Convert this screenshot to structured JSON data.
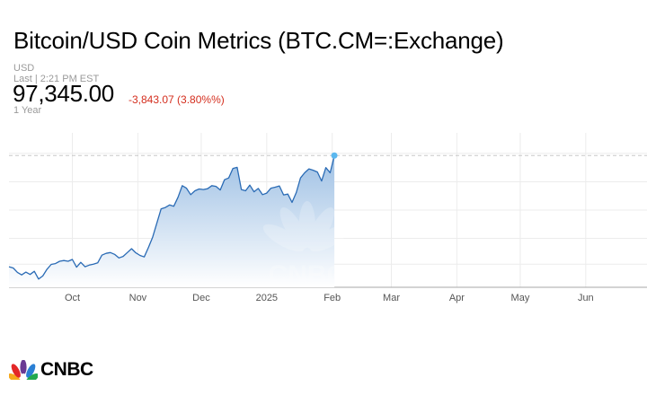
{
  "header": {
    "title": "Bitcoin/USD Coin Metrics (BTC.CM=:Exchange)",
    "currency": "USD",
    "last_update": "Last | 2:21 PM EST",
    "price": "97,345.00",
    "change": "-3,843.07 (3.80%%)",
    "range": "1 Year"
  },
  "brand": {
    "logo_text": "CNBC",
    "watermark": "CNBC"
  },
  "colors": {
    "line": "#2a6bb5",
    "area_top": "#9ec0e4",
    "change_negative": "#d42e1e",
    "marker": "#5bb8ef"
  },
  "chart_data": {
    "type": "area",
    "title": "",
    "xlabel": "",
    "ylabel": "",
    "x_ticks": [
      "Oct",
      "Nov",
      "Dec",
      "2025",
      "Feb",
      "Mar",
      "Apr",
      "May",
      "Jun"
    ],
    "x_tick_dates": [
      "2024-10-01",
      "2024-11-01",
      "2024-12-01",
      "2025-01-01",
      "2025-02-01",
      "2025-03-01",
      "2025-04-01",
      "2025-05-01",
      "2025-06-01"
    ],
    "x_range": [
      "2024-09-01",
      "2025-06-30"
    ],
    "y_range": [
      50000,
      110000
    ],
    "y_gridlines": [
      59000,
      69000,
      80000,
      91000,
      102000
    ],
    "previous_close": 101188,
    "show_y_ticks": false,
    "grid": true,
    "series": [
      {
        "values": [
          [
            "2024-09-01",
            58000
          ],
          [
            "2024-09-03",
            57500
          ],
          [
            "2024-09-05",
            55800
          ],
          [
            "2024-09-07",
            54800
          ],
          [
            "2024-09-09",
            55900
          ],
          [
            "2024-09-11",
            55000
          ],
          [
            "2024-09-13",
            56200
          ],
          [
            "2024-09-15",
            53200
          ],
          [
            "2024-09-17",
            54400
          ],
          [
            "2024-09-19",
            57000
          ],
          [
            "2024-09-21",
            58900
          ],
          [
            "2024-09-23",
            59200
          ],
          [
            "2024-09-25",
            60100
          ],
          [
            "2024-09-27",
            60400
          ],
          [
            "2024-09-29",
            60100
          ],
          [
            "2024-10-01",
            60800
          ],
          [
            "2024-10-03",
            57800
          ],
          [
            "2024-10-05",
            59700
          ],
          [
            "2024-10-07",
            58000
          ],
          [
            "2024-10-09",
            58600
          ],
          [
            "2024-10-11",
            59000
          ],
          [
            "2024-10-13",
            59500
          ],
          [
            "2024-10-15",
            62500
          ],
          [
            "2024-10-17",
            63200
          ],
          [
            "2024-10-19",
            63500
          ],
          [
            "2024-10-21",
            62800
          ],
          [
            "2024-10-23",
            61400
          ],
          [
            "2024-10-25",
            62000
          ],
          [
            "2024-10-27",
            63500
          ],
          [
            "2024-10-29",
            65000
          ],
          [
            "2024-10-31",
            63400
          ],
          [
            "2024-11-02",
            62400
          ],
          [
            "2024-11-04",
            61800
          ],
          [
            "2024-11-06",
            65500
          ],
          [
            "2024-11-08",
            69500
          ],
          [
            "2024-11-10",
            75000
          ],
          [
            "2024-11-12",
            80500
          ],
          [
            "2024-11-14",
            81000
          ],
          [
            "2024-11-16",
            82000
          ],
          [
            "2024-11-18",
            81500
          ],
          [
            "2024-11-20",
            85000
          ],
          [
            "2024-11-22",
            89500
          ],
          [
            "2024-11-24",
            88500
          ],
          [
            "2024-11-26",
            86000
          ],
          [
            "2024-11-28",
            87500
          ],
          [
            "2024-11-30",
            88200
          ],
          [
            "2024-12-02",
            88000
          ],
          [
            "2024-12-04",
            88300
          ],
          [
            "2024-12-06",
            89500
          ],
          [
            "2024-12-08",
            89200
          ],
          [
            "2024-12-10",
            87800
          ],
          [
            "2024-12-12",
            91800
          ],
          [
            "2024-12-14",
            92500
          ],
          [
            "2024-12-16",
            96200
          ],
          [
            "2024-12-18",
            96600
          ],
          [
            "2024-12-20",
            88000
          ],
          [
            "2024-12-22",
            87500
          ],
          [
            "2024-12-24",
            89700
          ],
          [
            "2024-12-26",
            87100
          ],
          [
            "2024-12-28",
            88400
          ],
          [
            "2024-12-30",
            86000
          ],
          [
            "2025-01-01",
            86600
          ],
          [
            "2025-01-03",
            88500
          ],
          [
            "2025-01-05",
            88900
          ],
          [
            "2025-01-07",
            89400
          ],
          [
            "2025-01-09",
            85900
          ],
          [
            "2025-01-11",
            86200
          ],
          [
            "2025-01-13",
            83000
          ],
          [
            "2025-01-15",
            86800
          ],
          [
            "2025-01-17",
            92500
          ],
          [
            "2025-01-19",
            94500
          ],
          [
            "2025-01-21",
            96000
          ],
          [
            "2025-01-23",
            95500
          ],
          [
            "2025-01-25",
            94800
          ],
          [
            "2025-01-27",
            91300
          ],
          [
            "2025-01-29",
            96500
          ],
          [
            "2025-01-31",
            94500
          ],
          [
            "2025-02-02",
            101188
          ]
        ]
      }
    ]
  }
}
